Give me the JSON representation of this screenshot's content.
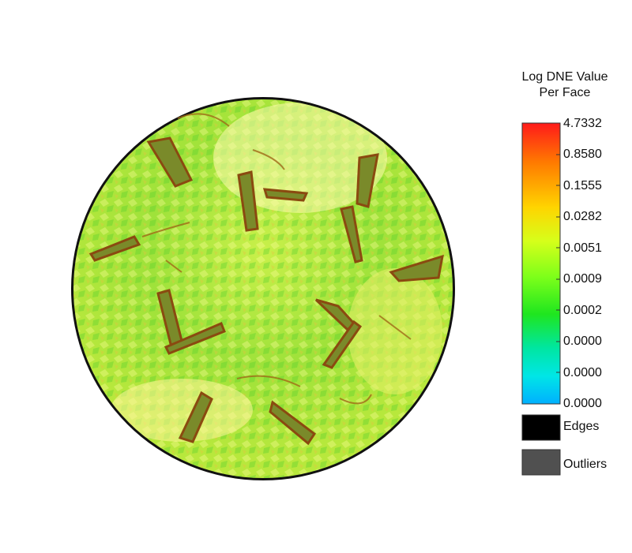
{
  "legend": {
    "title_line1": "Log DNE Value",
    "title_line2": "Per Face",
    "ticks": [
      "4.7332",
      "0.8580",
      "0.1555",
      "0.0282",
      "0.0051",
      "0.0009",
      "0.0002",
      "0.0000",
      "0.0000",
      "0.0000"
    ],
    "gradient_colors": [
      "#ff1a1a",
      "#ff7a00",
      "#ffd400",
      "#d6ff1a",
      "#7cff1a",
      "#1fe61f",
      "#00e6a0",
      "#00e6e6",
      "#00b0ff"
    ],
    "edges_label": "Edges",
    "edges_color": "#000000",
    "outliers_label": "Outliers",
    "outliers_color": "#505050"
  },
  "surface": {
    "base_color": "#8fe23a",
    "highlight_color": "#ffff88",
    "feature_color": "#b8860b"
  }
}
